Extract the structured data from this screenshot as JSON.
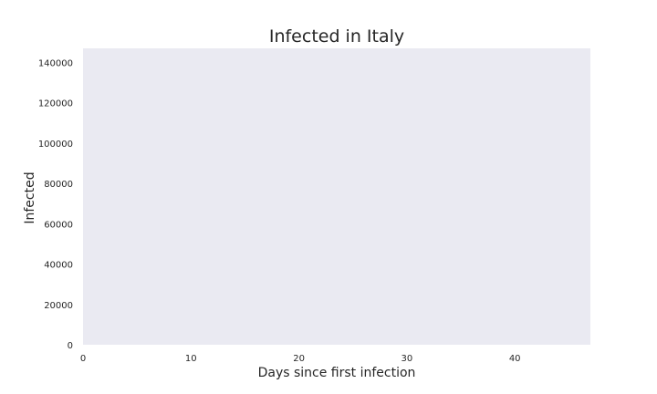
{
  "chart_data": {
    "type": "line",
    "title": "Infected in Italy",
    "xlabel": "Days since first infection",
    "ylabel": "Infected",
    "xlim": [
      0,
      47
    ],
    "ylim": [
      0,
      147000
    ],
    "xticks": [
      0,
      10,
      20,
      30,
      40
    ],
    "yticks": [
      0,
      20000,
      40000,
      60000,
      80000,
      100000,
      120000,
      140000
    ],
    "grid": false,
    "series": []
  },
  "colors": {
    "plot_background": "#eaeaf2",
    "text": "#262626"
  }
}
